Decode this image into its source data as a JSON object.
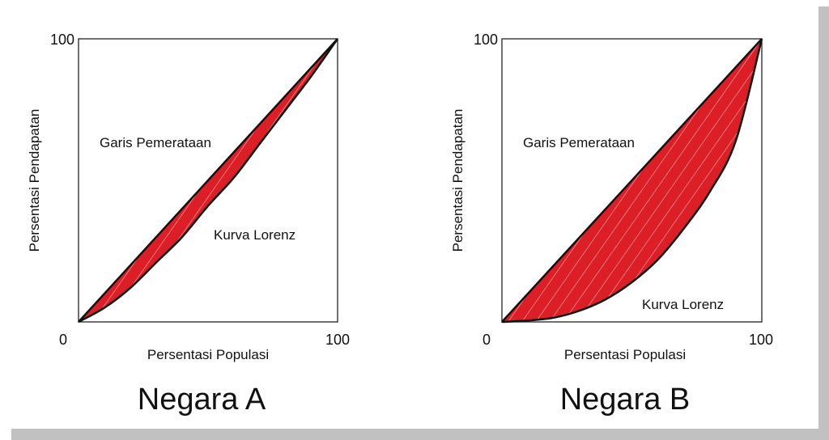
{
  "chart_data": [
    {
      "type": "line",
      "title": "Negara A",
      "xlabel": "Persentasi Populasi",
      "ylabel": "Persentasi Pendapatan",
      "xlim": [
        0,
        100
      ],
      "ylim": [
        0,
        100
      ],
      "tick_labels": {
        "origin": "0",
        "xmax": "100",
        "ymax": "100"
      },
      "series": [
        {
          "name": "Garis Pemerataan",
          "x": [
            0,
            100
          ],
          "y": [
            0,
            100
          ]
        },
        {
          "name": "Kurva Lorenz",
          "x": [
            0,
            10,
            20,
            30,
            40,
            50,
            60,
            70,
            80,
            90,
            100
          ],
          "y": [
            0,
            5,
            12,
            21,
            30,
            41,
            51,
            63,
            75,
            87,
            100
          ]
        }
      ],
      "fill_color": "#e0202a"
    },
    {
      "type": "line",
      "title": "Negara B",
      "xlabel": "Persentasi Populasi",
      "ylabel": "Persentasi Pendapatan",
      "xlim": [
        0,
        100
      ],
      "ylim": [
        0,
        100
      ],
      "tick_labels": {
        "origin": "0",
        "xmax": "100",
        "ymax": "100"
      },
      "series": [
        {
          "name": "Garis Pemerataan",
          "x": [
            0,
            100
          ],
          "y": [
            0,
            100
          ]
        },
        {
          "name": "Kurva Lorenz",
          "x": [
            0,
            10,
            20,
            30,
            40,
            50,
            60,
            70,
            80,
            90,
            100
          ],
          "y": [
            0,
            0.5,
            1.5,
            4,
            8,
            14,
            22,
            33,
            46,
            64,
            100
          ]
        }
      ],
      "fill_color": "#e0202a"
    }
  ]
}
